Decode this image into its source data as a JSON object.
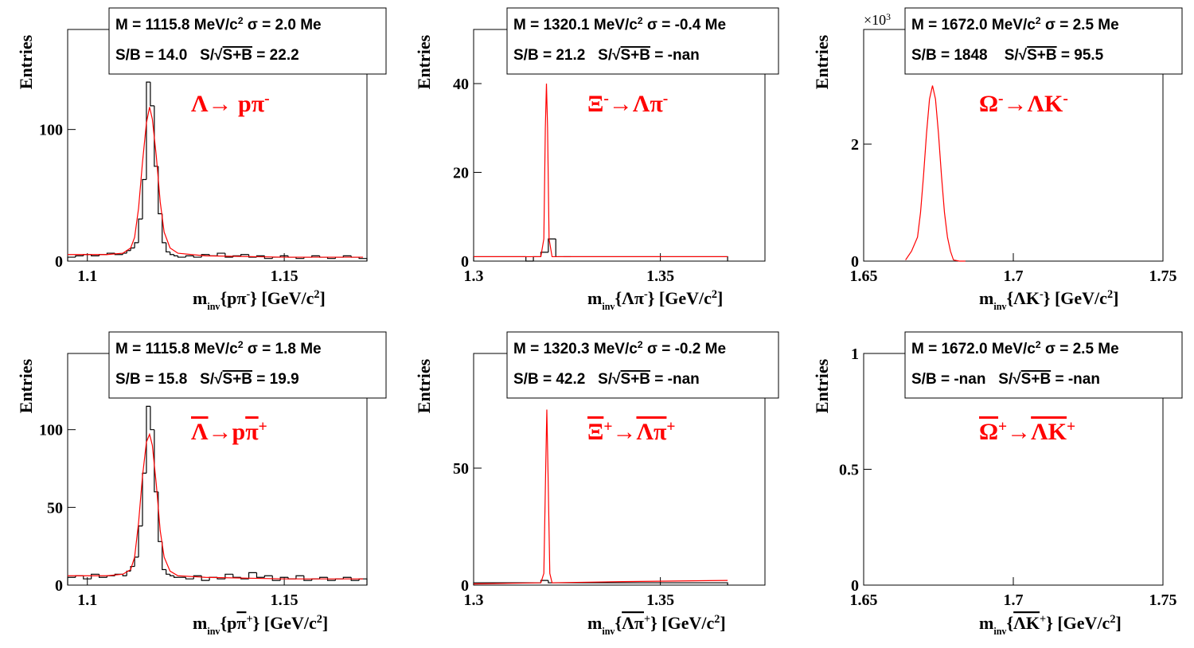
{
  "chart_data": [
    {
      "type": "histogram",
      "stats": [
        [
          {
            "t": "M = 1115.8 MeV/c"
          },
          {
            "sup": "2"
          },
          {
            "t": " σ = 2.0 Me"
          }
        ],
        [
          {
            "t": "S/B = 14.0   S/"
          },
          {
            "t": "√"
          },
          {
            "t": "S+B",
            "overline": true
          },
          {
            "t": " = 22.2"
          }
        ]
      ],
      "title": [
        {
          "t": "Λ→ pπ"
        },
        {
          "sup": "-"
        }
      ],
      "xlabel": [
        {
          "t": "m"
        },
        {
          "sub": "inv"
        },
        {
          "t": "{pπ"
        },
        {
          "sup": "-"
        },
        {
          "t": "} [GeV/c"
        },
        {
          "sup": "2"
        },
        {
          "t": "]"
        }
      ],
      "ylabel": "Entries",
      "xlim": [
        1.095,
        1.171
      ],
      "ylim": [
        0,
        176
      ],
      "xticks": [
        1.1,
        1.15
      ],
      "yticks": [
        0,
        100
      ],
      "bins": [
        1.095,
        1.097,
        1.099,
        1.101,
        1.103,
        1.105,
        1.107,
        1.109,
        1.11,
        1.111,
        1.112,
        1.113,
        1.114,
        1.115,
        1.116,
        1.117,
        1.118,
        1.119,
        1.12,
        1.121,
        1.122,
        1.123,
        1.125,
        1.127,
        1.129,
        1.131,
        1.133,
        1.135,
        1.137,
        1.139,
        1.141,
        1.143,
        1.145,
        1.147,
        1.149,
        1.151,
        1.153,
        1.155,
        1.157,
        1.159,
        1.161,
        1.163,
        1.165,
        1.167,
        1.169,
        1.171
      ],
      "values": [
        3,
        4,
        5,
        4,
        5,
        6,
        5,
        6,
        8,
        10,
        14,
        32,
        62,
        136,
        118,
        72,
        36,
        14,
        7,
        5,
        4,
        3,
        4,
        3,
        5,
        4,
        6,
        3,
        4,
        5,
        3,
        4,
        2,
        3,
        4,
        3,
        2,
        3,
        4,
        3,
        2,
        3,
        4,
        3,
        2
      ],
      "color": "#000000",
      "fit": {
        "color": "#ff0000",
        "x": [
          1.095,
          1.105,
          1.109,
          1.111,
          1.112,
          1.113,
          1.114,
          1.115,
          1.1158,
          1.1165,
          1.1175,
          1.1185,
          1.1195,
          1.121,
          1.123,
          1.13,
          1.15,
          1.17
        ],
        "values": [
          5,
          5,
          6,
          10,
          18,
          40,
          75,
          105,
          117,
          108,
          80,
          45,
          22,
          10,
          6,
          4,
          3,
          3
        ]
      }
    },
    {
      "type": "histogram",
      "stats": [
        [
          {
            "t": "M = 1320.1 MeV/c"
          },
          {
            "sup": "2"
          },
          {
            "t": " σ = -0.4 Me"
          }
        ],
        [
          {
            "t": "S/B = 21.2   S/"
          },
          {
            "t": "√"
          },
          {
            "t": "S+B",
            "overline": true
          },
          {
            "t": " = -nan"
          }
        ]
      ],
      "title": [
        {
          "t": "Ξ"
        },
        {
          "sup": "-"
        },
        {
          "t": "→Λπ"
        },
        {
          "sup": "-"
        }
      ],
      "xlabel": [
        {
          "t": "m"
        },
        {
          "sub": "inv"
        },
        {
          "t": "{Λπ"
        },
        {
          "sup": "-"
        },
        {
          "t": "} [GeV/c"
        },
        {
          "sup": "2"
        },
        {
          "t": "]"
        }
      ],
      "ylabel": "Entries",
      "xlim": [
        1.3,
        1.378
      ],
      "ylim": [
        0,
        52.2
      ],
      "xticks": [
        1.3,
        1.35
      ],
      "yticks": [
        0,
        20,
        40
      ],
      "bins": [
        1.3,
        1.314,
        1.316,
        1.318,
        1.32,
        1.322,
        1.324,
        1.326,
        1.368
      ],
      "values": [
        1,
        0,
        1,
        2,
        5,
        1,
        1,
        1
      ],
      "color": "#000000",
      "fit": {
        "color": "#ff0000",
        "x": [
          1.3,
          1.318,
          1.3188,
          1.3192,
          1.3195,
          1.3198,
          1.3202,
          1.321,
          1.368
        ],
        "values": [
          1,
          1,
          5,
          30,
          40,
          30,
          5,
          1,
          1
        ]
      }
    },
    {
      "type": "histogram",
      "stats": [
        [
          {
            "t": "M = 1672.0 MeV/c"
          },
          {
            "sup": "2"
          },
          {
            "t": " σ = 2.5 Me"
          }
        ],
        [
          {
            "t": "S/B = 1848    S/"
          },
          {
            "t": "√"
          },
          {
            "t": "S+B",
            "overline": true
          },
          {
            "t": " = 95.5"
          }
        ]
      ],
      "title": [
        {
          "t": "Ω"
        },
        {
          "sup": "-"
        },
        {
          "t": "→ΛK"
        },
        {
          "sup": "-"
        }
      ],
      "xlabel": [
        {
          "t": "m"
        },
        {
          "sub": "inv"
        },
        {
          "t": "{ΛK"
        },
        {
          "sup": "-"
        },
        {
          "t": "} [GeV/c"
        },
        {
          "sup": "2"
        },
        {
          "t": "]"
        }
      ],
      "ylabel": "Entries",
      "yscale": [
        {
          "t": "×10"
        },
        {
          "sup": "3"
        }
      ],
      "xlim": [
        1.65,
        1.75
      ],
      "ylim": [
        0,
        3.96
      ],
      "xticks": [
        1.65,
        1.7,
        1.75
      ],
      "yticks": [
        0,
        2
      ],
      "color": "#000000",
      "fit": {
        "color": "#ff0000",
        "x": [
          1.664,
          1.666,
          1.668,
          1.669,
          1.67,
          1.671,
          1.672,
          1.673,
          1.674,
          1.675,
          1.676,
          1.677,
          1.678,
          1.679,
          1.68,
          1.682,
          1.684
        ],
        "values": [
          0.02,
          0.17,
          0.41,
          0.83,
          1.46,
          2.18,
          2.77,
          3.0,
          2.77,
          2.18,
          1.46,
          0.83,
          0.41,
          0.17,
          0.02,
          0,
          0
        ]
      }
    },
    {
      "type": "histogram",
      "stats": [
        [
          {
            "t": "M = 1115.8 MeV/c"
          },
          {
            "sup": "2"
          },
          {
            "t": " σ = 1.8 Me"
          }
        ],
        [
          {
            "t": "S/B = 15.8   S/"
          },
          {
            "t": "√"
          },
          {
            "t": "S+B",
            "overline": true
          },
          {
            "t": " = 19.9"
          }
        ]
      ],
      "title": [
        {
          "t": "Λ",
          "overline": true
        },
        {
          "t": "→p"
        },
        {
          "t": "π",
          "overline": true
        },
        {
          "sup": "+"
        }
      ],
      "xlabel": [
        {
          "t": "m"
        },
        {
          "sub": "inv"
        },
        {
          "t": "{p"
        },
        {
          "t": "π",
          "overline": true
        },
        {
          "sup": "+"
        },
        {
          "t": "} [GeV/c"
        },
        {
          "sup": "2"
        },
        {
          "t": "]"
        }
      ],
      "ylabel": "Entries",
      "xlim": [
        1.095,
        1.171
      ],
      "ylim": [
        0,
        149
      ],
      "xticks": [
        1.1,
        1.15
      ],
      "yticks": [
        0,
        50,
        100
      ],
      "bins": [
        1.095,
        1.097,
        1.099,
        1.101,
        1.103,
        1.105,
        1.107,
        1.109,
        1.11,
        1.111,
        1.112,
        1.113,
        1.114,
        1.115,
        1.116,
        1.117,
        1.118,
        1.119,
        1.12,
        1.121,
        1.122,
        1.123,
        1.125,
        1.127,
        1.129,
        1.131,
        1.133,
        1.135,
        1.137,
        1.139,
        1.141,
        1.143,
        1.145,
        1.147,
        1.149,
        1.151,
        1.153,
        1.155,
        1.157,
        1.159,
        1.161,
        1.163,
        1.165,
        1.167,
        1.169,
        1.171
      ],
      "values": [
        5,
        6,
        4,
        7,
        5,
        6,
        7,
        6,
        9,
        12,
        18,
        38,
        72,
        115,
        100,
        60,
        28,
        10,
        7,
        6,
        5,
        5,
        4,
        6,
        3,
        5,
        4,
        7,
        5,
        4,
        8,
        5,
        6,
        3,
        5,
        4,
        6,
        3,
        4,
        5,
        3,
        4,
        5,
        3,
        4
      ],
      "color": "#000000",
      "fit": {
        "color": "#ff0000",
        "x": [
          1.095,
          1.105,
          1.109,
          1.111,
          1.112,
          1.113,
          1.114,
          1.115,
          1.1158,
          1.1165,
          1.1175,
          1.1185,
          1.1195,
          1.121,
          1.123,
          1.13,
          1.15,
          1.17
        ],
        "values": [
          6,
          6,
          7,
          10,
          18,
          40,
          70,
          92,
          97,
          90,
          65,
          35,
          18,
          9,
          6,
          5,
          4,
          4
        ]
      }
    },
    {
      "type": "histogram",
      "stats": [
        [
          {
            "t": "M = 1320.3 MeV/c"
          },
          {
            "sup": "2"
          },
          {
            "t": " σ = -0.2 Me"
          }
        ],
        [
          {
            "t": "S/B = 42.2   S/"
          },
          {
            "t": "√"
          },
          {
            "t": "S+B",
            "overline": true
          },
          {
            "t": " = -nan"
          }
        ]
      ],
      "title": [
        {
          "t": "Ξ",
          "overline": true
        },
        {
          "sup": "+"
        },
        {
          "t": "→"
        },
        {
          "t": "Λπ",
          "overline": true
        },
        {
          "sup": "+"
        }
      ],
      "xlabel": [
        {
          "t": "m"
        },
        {
          "sub": "inv"
        },
        {
          "t": "{"
        },
        {
          "t": "Λπ",
          "overline": true
        },
        {
          "sup": "+"
        },
        {
          "t": "} [GeV/c"
        },
        {
          "sup": "2"
        },
        {
          "t": "]"
        }
      ],
      "ylabel": "Entries",
      "xlim": [
        1.3,
        1.378
      ],
      "ylim": [
        0,
        99
      ],
      "xticks": [
        1.3,
        1.35
      ],
      "yticks": [
        0,
        50
      ],
      "bins": [
        1.3,
        1.318,
        1.32,
        1.322,
        1.368
      ],
      "values": [
        1,
        2,
        1,
        1
      ],
      "color": "#000000",
      "fit": {
        "color": "#ff0000",
        "x": [
          1.3,
          1.318,
          1.3188,
          1.3193,
          1.3196,
          1.3199,
          1.3204,
          1.321,
          1.34,
          1.368
        ],
        "values": [
          0.5,
          1,
          5,
          50,
          75,
          50,
          5,
          1,
          1.5,
          2
        ]
      }
    },
    {
      "type": "histogram",
      "stats": [
        [
          {
            "t": "M = 1672.0 MeV/c"
          },
          {
            "sup": "2"
          },
          {
            "t": " σ = 2.5 Me"
          }
        ],
        [
          {
            "t": "S/B = -nan   S/"
          },
          {
            "t": "√"
          },
          {
            "t": "S+B",
            "overline": true
          },
          {
            "t": " = -nan"
          }
        ]
      ],
      "title": [
        {
          "t": "Ω",
          "overline": true
        },
        {
          "sup": "+"
        },
        {
          "t": "→"
        },
        {
          "t": "ΛK",
          "overline": true
        },
        {
          "sup": "+"
        }
      ],
      "xlabel": [
        {
          "t": "m"
        },
        {
          "sub": "inv"
        },
        {
          "t": "{"
        },
        {
          "t": "ΛK",
          "overline": true
        },
        {
          "sup": "+"
        },
        {
          "t": "} [GeV/c"
        },
        {
          "sup": "2"
        },
        {
          "t": "]"
        }
      ],
      "ylabel": "Entries",
      "xlim": [
        1.65,
        1.75
      ],
      "ylim": [
        0,
        1
      ],
      "xticks": [
        1.65,
        1.7,
        1.75
      ],
      "yticks": [
        0,
        {
          "value": 0.5,
          "label": "0.5"
        },
        1
      ],
      "color": "#000000"
    }
  ]
}
